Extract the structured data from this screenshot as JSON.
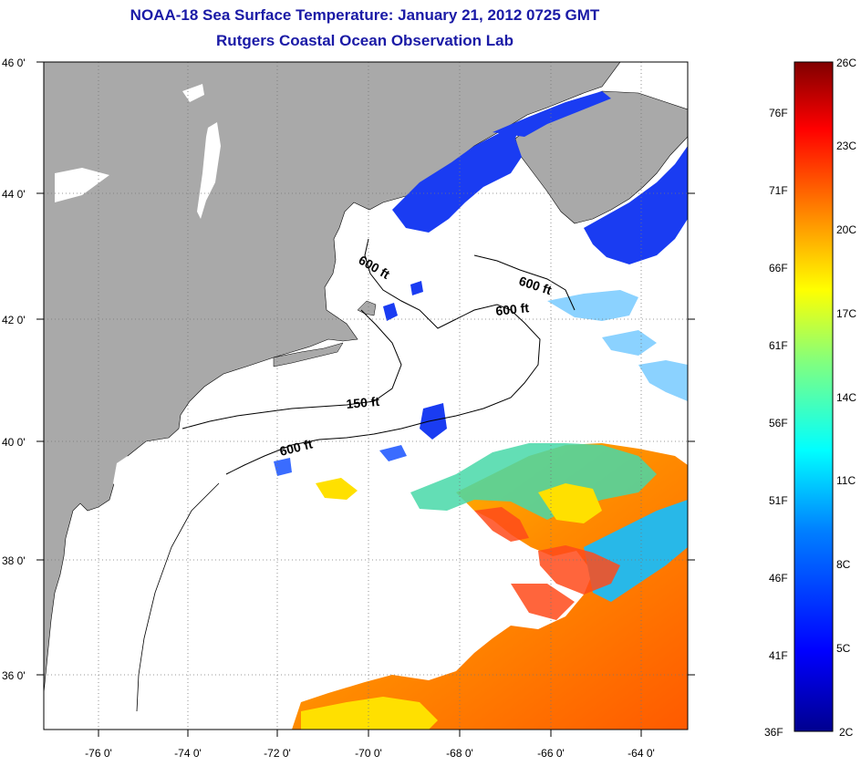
{
  "title": {
    "line1": "NOAA-18 Sea Surface Temperature:  January 21, 2012 0725 GMT",
    "line2": "Rutgers Coastal Ocean Observation Lab"
  },
  "axes": {
    "latitude_ticks": [
      "46 0'",
      "44 0'",
      "42 0'",
      "40 0'",
      "38 0'",
      "36 0'"
    ],
    "longitude_ticks": [
      "-76 0'",
      "-74 0'",
      "-72 0'",
      "-70 0'",
      "-68 0'",
      "-66 0'",
      "-64 0'"
    ]
  },
  "contours": {
    "labels": [
      "600 ft",
      "600 ft",
      "600 ft",
      "150 ft",
      "600 ft"
    ]
  },
  "colorbar": {
    "fahrenheit_labels": [
      "76F",
      "71F",
      "66F",
      "61F",
      "56F",
      "51F",
      "46F",
      "41F",
      "36F"
    ],
    "celsius_labels": [
      "26C",
      "23C",
      "20C",
      "17C",
      "14C",
      "11C",
      "8C",
      "5C",
      "2C"
    ]
  },
  "colors": {
    "title": "#1a1aa6",
    "land": "#a9a9a9",
    "no_data": "#ffffff",
    "scale": [
      "#00008f",
      "#0000ff",
      "#0080ff",
      "#00ffff",
      "#80ff80",
      "#ffff00",
      "#ff8000",
      "#ff0000",
      "#800000"
    ]
  }
}
